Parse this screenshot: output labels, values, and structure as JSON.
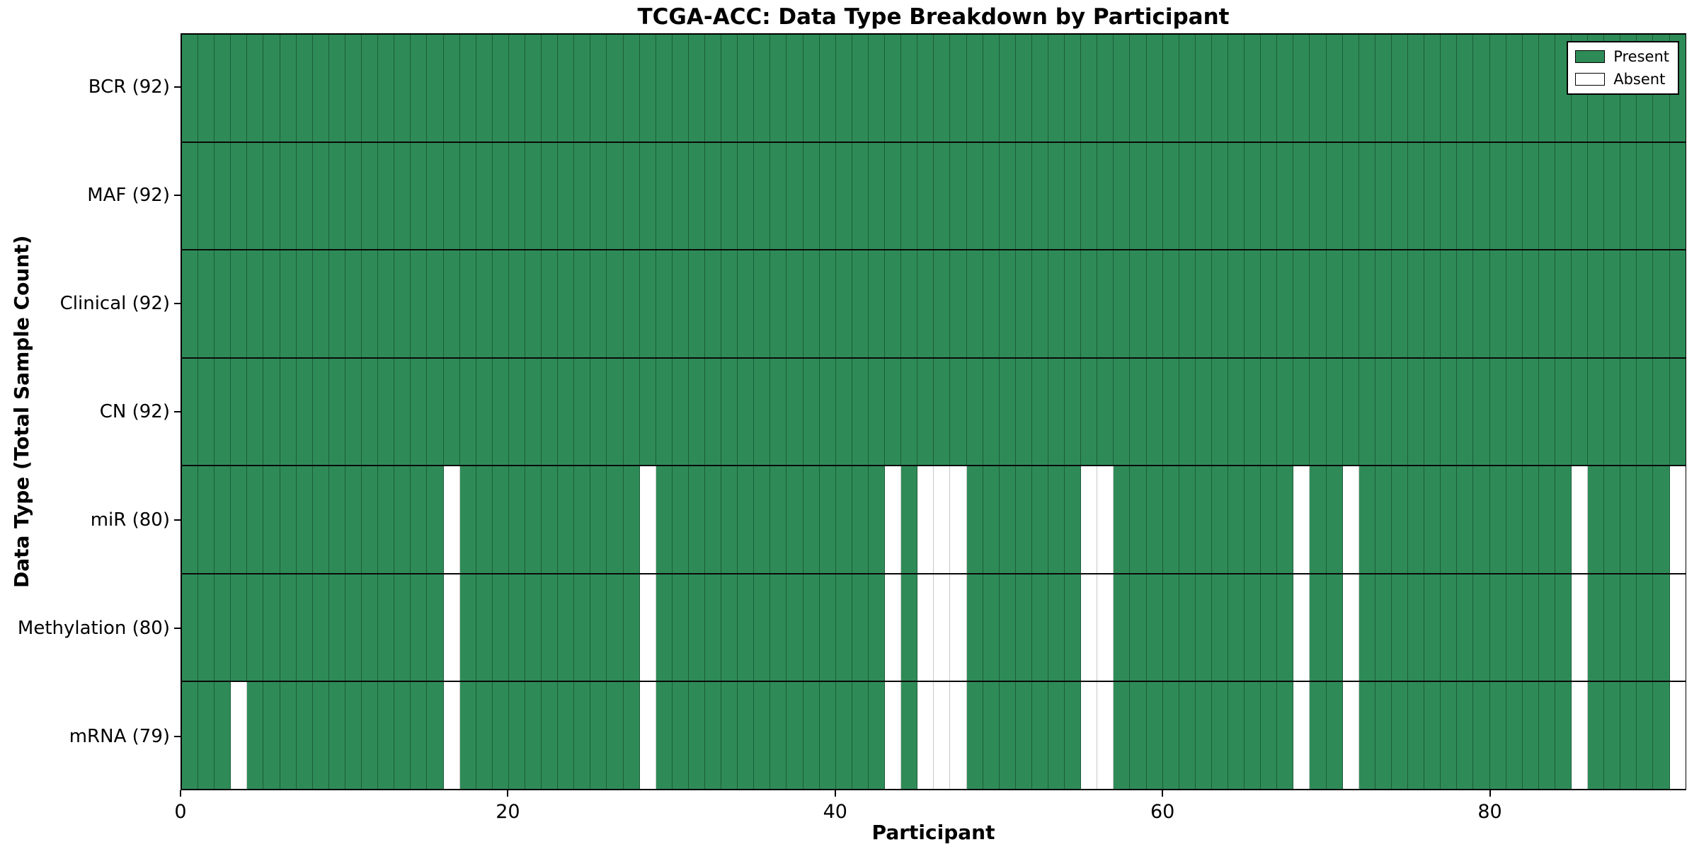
{
  "chart_data": {
    "type": "heatmap",
    "title": "TCGA-ACC: Data Type Breakdown by Participant",
    "xlabel": "Participant",
    "ylabel": "Data Type (Total Sample Count)",
    "n_participants": 92,
    "x_ticks": [
      0,
      20,
      40,
      60,
      80
    ],
    "rows": [
      {
        "data_type": "BCR",
        "label": "BCR (92)",
        "total": 92,
        "absent_participants": []
      },
      {
        "data_type": "MAF",
        "label": "MAF (92)",
        "total": 92,
        "absent_participants": []
      },
      {
        "data_type": "Clinical",
        "label": "Clinical (92)",
        "total": 92,
        "absent_participants": []
      },
      {
        "data_type": "CN",
        "label": "CN (92)",
        "total": 92,
        "absent_participants": []
      },
      {
        "data_type": "miR",
        "label": "miR (80)",
        "total": 80,
        "absent_participants": [
          16,
          28,
          43,
          45,
          46,
          47,
          55,
          56,
          68,
          71,
          85,
          91
        ]
      },
      {
        "data_type": "Methylation",
        "label": "Methylation (80)",
        "total": 80,
        "absent_participants": [
          16,
          28,
          43,
          45,
          46,
          47,
          55,
          56,
          68,
          71,
          85,
          91
        ]
      },
      {
        "data_type": "mRNA",
        "label": "mRNA (79)",
        "total": 79,
        "absent_participants": [
          3,
          16,
          28,
          43,
          45,
          46,
          47,
          55,
          56,
          68,
          71,
          85,
          91
        ]
      }
    ],
    "legend": {
      "position": "upper right",
      "entries": [
        {
          "label": "Present",
          "color": "#2E8B57"
        },
        {
          "label": "Absent",
          "color": "#FFFFFF"
        }
      ]
    },
    "colors": {
      "present": "#2E8B57",
      "absent": "#FFFFFF",
      "cell_border_present": "#1d5c3a",
      "cell_border_absent": "#c9c9c9",
      "frame": "#000000"
    }
  }
}
